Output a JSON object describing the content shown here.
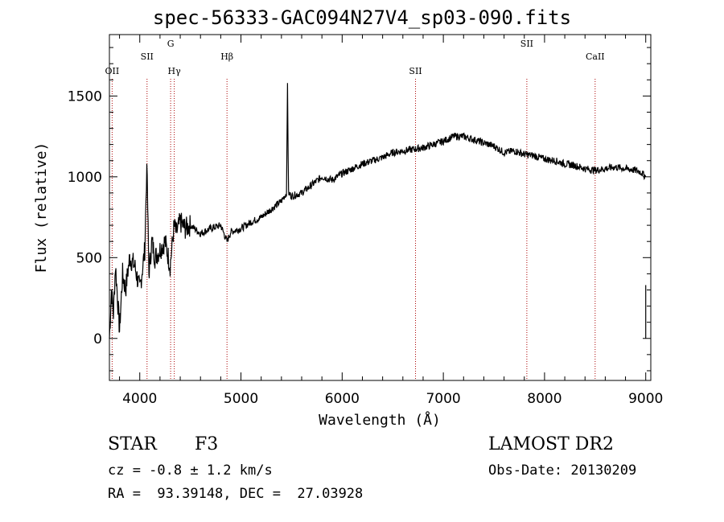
{
  "title": "spec-56333-GAC094N27V4_sp03-090.fits",
  "info": {
    "class": "STAR",
    "subclass": "F3",
    "cz": "cz = -0.8 ± 1.2 km/s",
    "radec": "RA =  93.39148, DEC =  27.03928",
    "survey": "LAMOST DR2",
    "obsdate": "Obs-Date: 20130209"
  },
  "chart_data": {
    "type": "line",
    "title": "spec-56333-GAC094N27V4_sp03-090.fits",
    "xlabel": "Wavelength (Å)",
    "ylabel": "Flux (relative)",
    "xlim": [
      3700,
      9050
    ],
    "ylim": [
      -260,
      1880
    ],
    "xticks": [
      4000,
      5000,
      6000,
      7000,
      8000,
      9000
    ],
    "yticks": [
      0,
      500,
      1000,
      1500
    ],
    "series": [
      {
        "x": [
          3700,
          3720,
          3740,
          3760,
          3780,
          3800,
          3830,
          3860,
          3900,
          3950,
          4000,
          4050,
          4070,
          4090,
          4120,
          4150,
          4200,
          4250,
          4300,
          4340,
          4360,
          4400,
          4450,
          4500,
          4600,
          4700,
          4800,
          4862,
          4900,
          5000,
          5100,
          5200,
          5300,
          5400,
          5450,
          5460,
          5470,
          5500,
          5600,
          5700,
          5800,
          5900,
          6000,
          6100,
          6200,
          6300,
          6400,
          6500,
          6600,
          6700,
          6800,
          6900,
          7000,
          7100,
          7200,
          7300,
          7400,
          7500,
          7600,
          7700,
          7800,
          7900,
          8000,
          8100,
          8200,
          8300,
          8400,
          8500,
          8600,
          8700,
          8800,
          8900,
          8950,
          9000
        ],
        "y": [
          0,
          300,
          150,
          450,
          250,
          50,
          400,
          300,
          500,
          450,
          300,
          550,
          1080,
          400,
          600,
          500,
          550,
          600,
          450,
          700,
          650,
          720,
          680,
          700,
          650,
          680,
          700,
          600,
          660,
          680,
          720,
          750,
          800,
          850,
          900,
          1580,
          900,
          880,
          900,
          950,
          1000,
          980,
          1020,
          1050,
          1080,
          1100,
          1120,
          1150,
          1160,
          1170,
          1180,
          1200,
          1220,
          1250,
          1250,
          1230,
          1210,
          1190,
          1150,
          1160,
          1140,
          1130,
          1110,
          1100,
          1080,
          1070,
          1050,
          1040,
          1050,
          1060,
          1050,
          1040,
          1030,
          1000
        ]
      }
    ],
    "lines": [
      {
        "label": "OII",
        "x": 3727
      },
      {
        "label": "SII",
        "x": 4072
      },
      {
        "label": "G",
        "x": 4305
      },
      {
        "label": "Hγ",
        "x": 4341
      },
      {
        "label": "Hβ",
        "x": 4862
      },
      {
        "label": "SII",
        "x": 6725
      },
      {
        "label": "SII",
        "x": 7825
      },
      {
        "label": "CaII",
        "x": 8500
      }
    ]
  }
}
